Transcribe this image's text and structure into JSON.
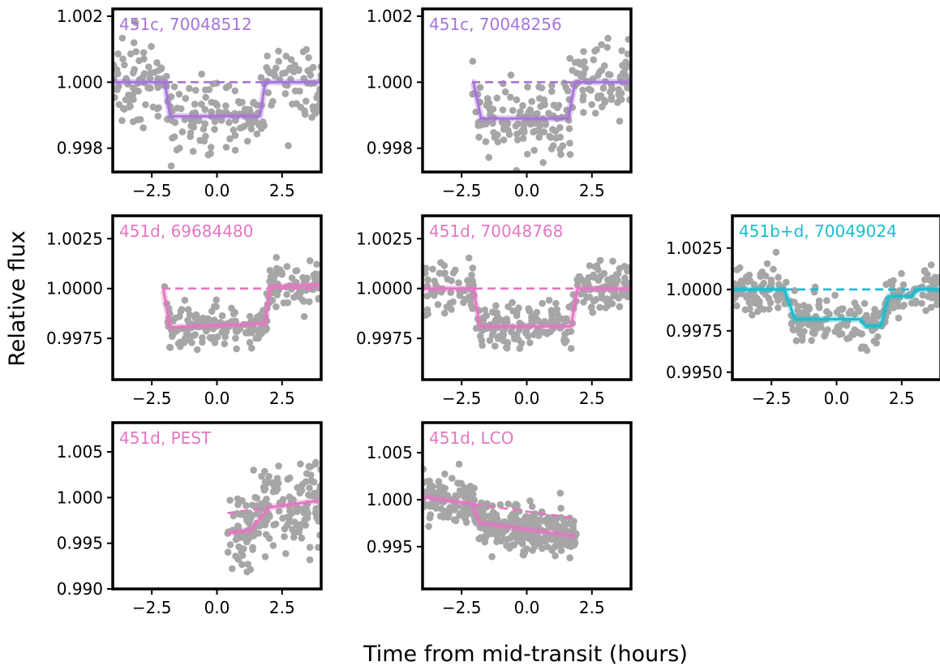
{
  "figure": {
    "ylabel": "Relative flux",
    "xlabel": "Time from mid-transit (hours)",
    "colors": {
      "purple": "#a774d9",
      "pink": "#e377c2",
      "cyan": "#17becf",
      "points": "#a6a6a6"
    }
  },
  "chart_data": [
    {
      "type": "scatter",
      "title": "451c, 70048512",
      "color": "#a774d9",
      "xlim": [
        -4.0,
        4.0
      ],
      "ylim": [
        0.99728,
        1.00222
      ],
      "xticks": [
        -2.5,
        0.0,
        2.5
      ],
      "xticklabels": [
        "−2.5",
        "0.0",
        "2.5"
      ],
      "yticks": [
        0.998,
        1.0,
        1.002
      ],
      "yticklabels": [
        "0.998",
        "1.000",
        "1.002"
      ],
      "model": {
        "kind": "box",
        "baseline": 1.0,
        "t1": -2.0,
        "t2": -1.8,
        "t3": 1.65,
        "t4": 1.85,
        "depth": 0.00103,
        "tilt": 0.0,
        "data_start": -4.0,
        "data_end": 4.0
      },
      "baseline_line": {
        "y0": 1.0,
        "y1": 1.0,
        "x0": -4.0,
        "x1": 4.0
      },
      "noise": 0.00055,
      "n_points": 260
    },
    {
      "type": "scatter",
      "title": "451c, 70048256",
      "color": "#a774d9",
      "xlim": [
        -4.0,
        4.0
      ],
      "ylim": [
        0.99728,
        1.00222
      ],
      "xticks": [
        -2.5,
        0.0,
        2.5
      ],
      "xticklabels": [
        "−2.5",
        "0.0",
        "2.5"
      ],
      "yticks": [
        0.998,
        1.0,
        1.002
      ],
      "yticklabels": [
        "0.998",
        "1.000",
        "1.002"
      ],
      "model": {
        "kind": "box",
        "baseline": 1.0,
        "t1": -2.05,
        "t2": -1.75,
        "t3": 1.6,
        "t4": 1.85,
        "depth": 0.0011,
        "tilt": 0.0,
        "data_start": -2.1,
        "data_end": 4.0
      },
      "baseline_line": {
        "y0": 1.0,
        "y1": 1.0,
        "x0": -2.1,
        "x1": 4.0
      },
      "noise": 0.00062,
      "n_points": 210
    },
    {
      "type": "scatter",
      "title": "451d, 69684480",
      "color": "#e377c2",
      "xlim": [
        -4.0,
        4.0
      ],
      "ylim": [
        0.99543,
        1.00365
      ],
      "xticks": [
        -2.5,
        0.0,
        2.5
      ],
      "xticklabels": [
        "−2.5",
        "0.0",
        "2.5"
      ],
      "yticks": [
        0.9975,
        1.0,
        1.0025
      ],
      "yticklabels": [
        "0.9975",
        "1.0000",
        "1.0025"
      ],
      "model": {
        "kind": "box",
        "baseline": 1.0,
        "t1": -2.05,
        "t2": -1.8,
        "t3": 1.85,
        "t4": 2.05,
        "depth": 0.00185,
        "tilt": 0.0001,
        "data_start": -2.1,
        "data_end": 4.0
      },
      "baseline_line": {
        "y0": 1.0,
        "y1": 1.0,
        "x0": -2.1,
        "x1": 4.0
      },
      "noise": 0.00055,
      "n_points": 230
    },
    {
      "type": "scatter",
      "title": "451d, 70048768",
      "color": "#e377c2",
      "xlim": [
        -4.0,
        4.0
      ],
      "ylim": [
        0.99543,
        1.00365
      ],
      "xticks": [
        -2.5,
        0.0,
        2.5
      ],
      "xticklabels": [
        "−2.5",
        "0.0",
        "2.5"
      ],
      "yticks": [
        0.9975,
        1.0,
        1.0025
      ],
      "yticklabels": [
        "0.9975",
        "1.0000",
        "1.0025"
      ],
      "model": {
        "kind": "box",
        "baseline": 1.0,
        "t1": -2.05,
        "t2": -1.8,
        "t3": 1.7,
        "t4": 1.95,
        "depth": 0.0019,
        "tilt": 0.0,
        "data_start": -4.0,
        "data_end": 4.0
      },
      "baseline_line": {
        "y0": 1.0,
        "y1": 1.0,
        "x0": -4.0,
        "x1": 4.0
      },
      "noise": 0.00058,
      "n_points": 300
    },
    {
      "type": "scatter",
      "title": "451b+d, 70049024",
      "color": "#17becf",
      "xlim": [
        -4.0,
        4.0
      ],
      "ylim": [
        0.99455,
        1.00445
      ],
      "xticks": [
        -2.5,
        0.0,
        2.5
      ],
      "xticklabels": [
        "−2.5",
        "0.0",
        "2.5"
      ],
      "yticks": [
        0.995,
        0.9975,
        1.0,
        1.0025
      ],
      "yticklabels": [
        "0.9950",
        "0.9975",
        "1.0000",
        "1.0025"
      ],
      "model": {
        "kind": "double",
        "baseline": 1.0,
        "t1": -2.0,
        "t2": -1.6,
        "t3": 1.7,
        "t4": 2.0,
        "depth": 0.0018,
        "extra_start": 0.9,
        "extra_end": 3.1,
        "extra_depth": 0.0004,
        "extra_ramp": 0.2,
        "data_start": -4.0,
        "data_end": 4.0
      },
      "baseline_line": {
        "y0": 1.0,
        "y1": 1.0,
        "x0": -4.0,
        "x1": 4.0
      },
      "noise": 0.0007,
      "n_points": 300
    },
    {
      "type": "scatter",
      "title": "451d, PEST",
      "color": "#e377c2",
      "xlim": [
        -4.0,
        4.0
      ],
      "ylim": [
        0.99,
        1.0082
      ],
      "xticks": [
        -2.5,
        0.0,
        2.5
      ],
      "xticklabels": [
        "−2.5",
        "0.0",
        "2.5"
      ],
      "yticks": [
        0.99,
        0.995,
        1.0,
        1.005
      ],
      "yticklabels": [
        "0.990",
        "0.995",
        "1.000",
        "1.005"
      ],
      "model": {
        "kind": "trend",
        "y0": 0.9983,
        "y1": 0.9997,
        "x0": 0.4,
        "x1": 4.0,
        "t_egress_start": 1.3,
        "t4": 2.0,
        "depth": 0.0022
      },
      "baseline_line": {
        "y0": 0.9983,
        "y1": 0.9997,
        "x0": 0.4,
        "x1": 4.0
      },
      "noise": 0.0023,
      "n_points": 200
    },
    {
      "type": "scatter",
      "title": "451d, LCO",
      "color": "#e377c2",
      "xlim": [
        -4.0,
        4.0
      ],
      "ylim": [
        0.9905,
        1.0082
      ],
      "xticks": [
        -2.5,
        0.0,
        2.5
      ],
      "xticklabels": [
        "−2.5",
        "0.0",
        "2.5"
      ],
      "yticks": [
        0.995,
        1.0,
        1.005
      ],
      "yticklabels": [
        "0.995",
        "1.000",
        "1.005"
      ],
      "model": {
        "kind": "trend_ingress",
        "y0": 1.0003,
        "y1": 0.998,
        "x0": -4.0,
        "x1": 1.9,
        "t1": -2.1,
        "t2": -1.8,
        "depth": 0.0019
      },
      "baseline_line": {
        "y0": 1.0003,
        "y1": 0.998,
        "x0": -4.0,
        "x1": 1.9
      },
      "noise": 0.0011,
      "n_points": 420
    }
  ]
}
